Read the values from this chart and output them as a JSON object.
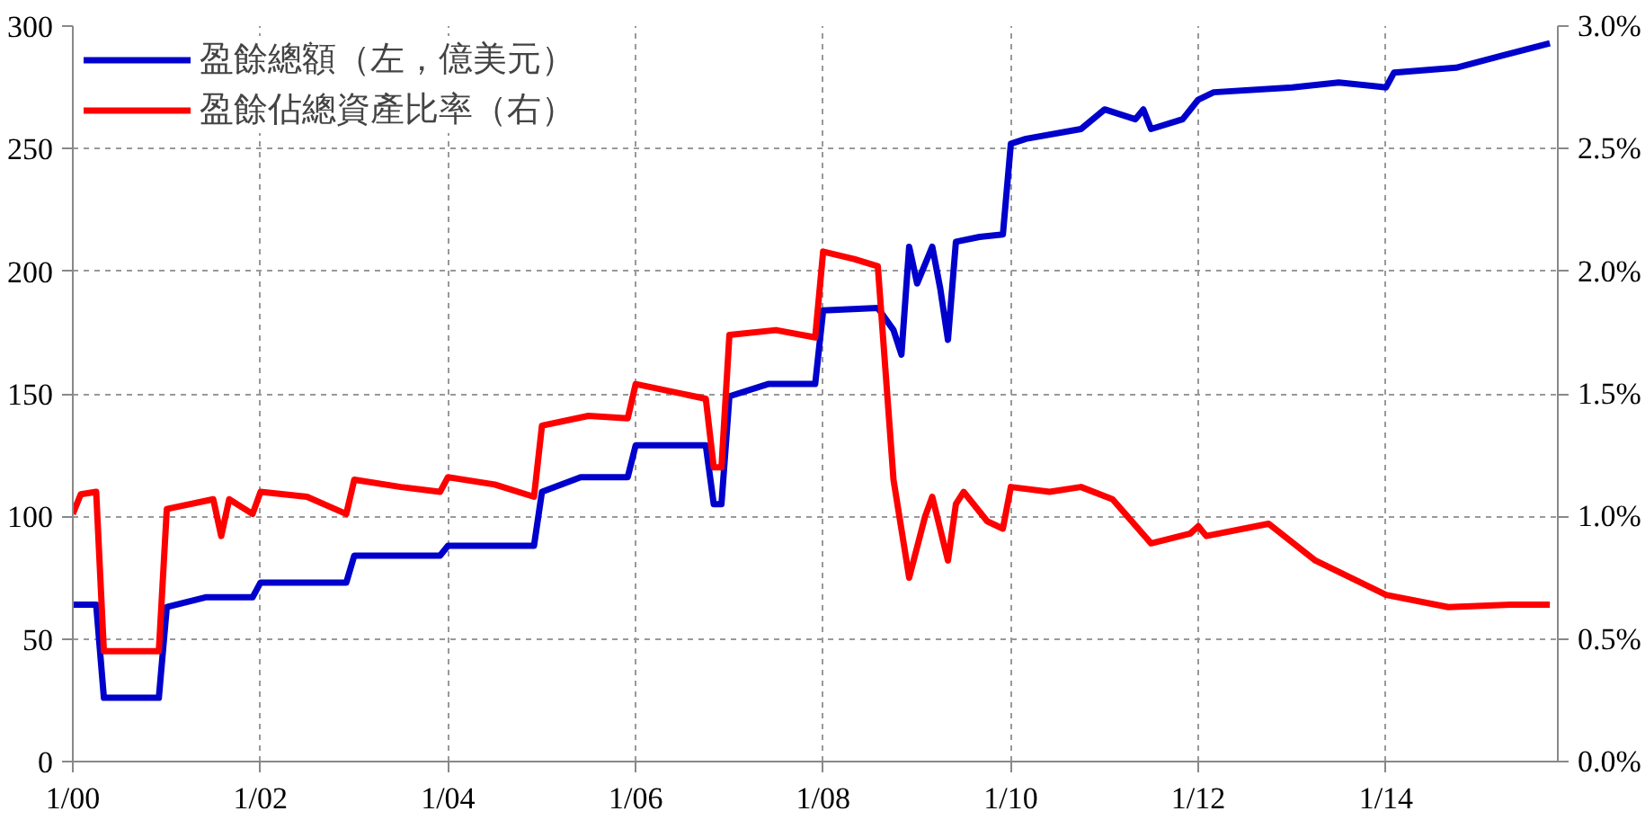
{
  "chart_data": {
    "type": "line",
    "xlim": [
      "2000-01",
      "2015-11"
    ],
    "xticks": [
      {
        "value": "2000-01",
        "label": "1/00"
      },
      {
        "value": "2002-01",
        "label": "1/02"
      },
      {
        "value": "2004-01",
        "label": "1/04"
      },
      {
        "value": "2006-01",
        "label": "1/06"
      },
      {
        "value": "2008-01",
        "label": "1/08"
      },
      {
        "value": "2010-01",
        "label": "1/10"
      },
      {
        "value": "2012-01",
        "label": "1/12"
      },
      {
        "value": "2014-01",
        "label": "1/14"
      }
    ],
    "ylim": [
      0,
      300
    ],
    "yticks": [
      0,
      50,
      100,
      150,
      200,
      250,
      300
    ],
    "y2lim": [
      0,
      3
    ],
    "y2ticks": [
      {
        "value": 0,
        "label": "0.0%"
      },
      {
        "value": 0.5,
        "label": "0.5%"
      },
      {
        "value": 1,
        "label": "1.0%"
      },
      {
        "value": 1.5,
        "label": "1.5%"
      },
      {
        "value": 2,
        "label": "2.0%"
      },
      {
        "value": 2.5,
        "label": "2.5%"
      },
      {
        "value": 3,
        "label": "3.0%"
      }
    ],
    "grid": true,
    "legend": "top left",
    "line_style": "solid",
    "series": [
      {
        "name": "盈餘總額（左，億美元）",
        "color": "#0000cc",
        "x": [
          "2000-01",
          "2000-04",
          "2000-05",
          "2000-12",
          "2001-01",
          "2001-06",
          "2001-12",
          "2002-01",
          "2002-12",
          "2003-01",
          "2003-12",
          "2004-01",
          "2004-12",
          "2005-01",
          "2005-06",
          "2005-12",
          "2006-01",
          "2006-10",
          "2006-11",
          "2006-12",
          "2007-01",
          "2007-06",
          "2007-12",
          "2008-01",
          "2008-08",
          "2008-10",
          "2008-11",
          "2008-12",
          "2009-01",
          "2009-03",
          "2009-04",
          "2009-05",
          "2009-06",
          "2009-09",
          "2009-12",
          "2010-01",
          "2010-03",
          "2010-10",
          "2011-01",
          "2011-05",
          "2011-06",
          "2011-07",
          "2011-11",
          "2012-01",
          "2012-03",
          "2013-01",
          "2013-07",
          "2014-01",
          "2014-02",
          "2014-10",
          "2015-04",
          "2015-10"
        ],
        "values": [
          64,
          64,
          26,
          26,
          63,
          67,
          67,
          73,
          73,
          84,
          84,
          88,
          88,
          110,
          116,
          116,
          129,
          129,
          105,
          105,
          149,
          154,
          154,
          184,
          185,
          176,
          166,
          210,
          195,
          210,
          193,
          172,
          212,
          214,
          215,
          252,
          254,
          258,
          266,
          262,
          266,
          258,
          262,
          270,
          273,
          275,
          277,
          275,
          281,
          283,
          288,
          293
        ]
      },
      {
        "name": "盈餘佔總資產比率（右）",
        "color": "#ff0000",
        "axis": "y2",
        "x": [
          "2000-01",
          "2000-02",
          "2000-04",
          "2000-05",
          "2000-12",
          "2001-01",
          "2001-07",
          "2001-08",
          "2001-09",
          "2001-12",
          "2002-01",
          "2002-07",
          "2002-12",
          "2003-01",
          "2003-07",
          "2003-12",
          "2004-01",
          "2004-07",
          "2004-12",
          "2005-01",
          "2005-07",
          "2005-12",
          "2006-01",
          "2006-10",
          "2006-11",
          "2006-12",
          "2007-01",
          "2007-07",
          "2007-12",
          "2008-01",
          "2008-05",
          "2008-08",
          "2008-10",
          "2008-12",
          "2009-02",
          "2009-03",
          "2009-05",
          "2009-06",
          "2009-07",
          "2009-10",
          "2009-12",
          "2010-01",
          "2010-06",
          "2010-10",
          "2011-02",
          "2011-07",
          "2011-12",
          "2012-01",
          "2012-02",
          "2012-10",
          "2013-04",
          "2014-01",
          "2014-09",
          "2015-05",
          "2015-10"
        ],
        "values": [
          1.01,
          1.09,
          1.1,
          0.45,
          0.45,
          1.03,
          1.07,
          0.92,
          1.07,
          1.01,
          1.1,
          1.08,
          1.01,
          1.15,
          1.12,
          1.1,
          1.16,
          1.13,
          1.08,
          1.37,
          1.41,
          1.4,
          1.54,
          1.48,
          1.2,
          1.2,
          1.74,
          1.76,
          1.73,
          2.08,
          2.05,
          2.02,
          1.15,
          0.75,
          1.0,
          1.08,
          0.82,
          1.05,
          1.1,
          0.98,
          0.95,
          1.12,
          1.1,
          1.12,
          1.07,
          0.89,
          0.93,
          0.96,
          0.92,
          0.97,
          0.82,
          0.68,
          0.63,
          0.64,
          0.64
        ]
      }
    ]
  }
}
